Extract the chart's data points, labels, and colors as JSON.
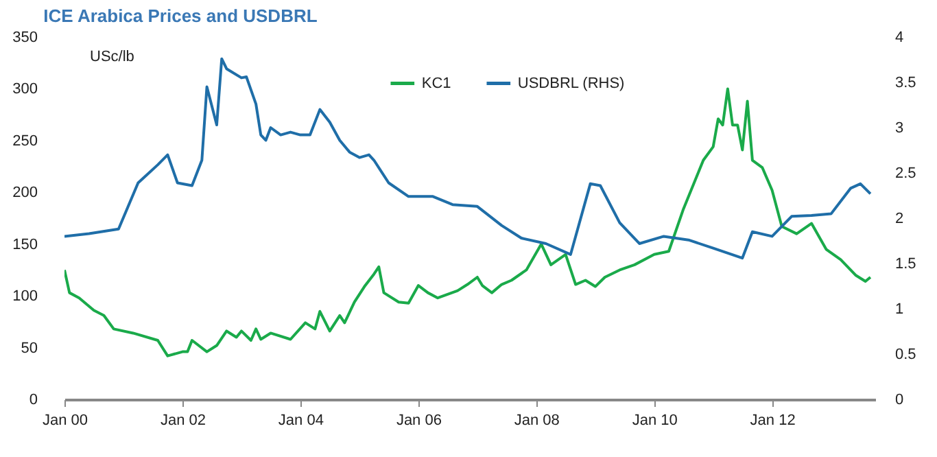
{
  "chart_data": {
    "type": "line",
    "title": "ICE Arabica Prices and USDBRL",
    "ylabel": "USc/lb",
    "legend": "top",
    "xlim": [
      "2000-01",
      "2013-10"
    ],
    "xticks": [
      {
        "value": "2000-01",
        "label": "Jan 00"
      },
      {
        "value": "2002-01",
        "label": "Jan 02"
      },
      {
        "value": "2004-01",
        "label": "Jan 04"
      },
      {
        "value": "2006-01",
        "label": "Jan 06"
      },
      {
        "value": "2008-01",
        "label": "Jan 08"
      },
      {
        "value": "2010-01",
        "label": "Jan 10"
      },
      {
        "value": "2012-01",
        "label": "Jan 12"
      }
    ],
    "ylim": [
      0,
      350
    ],
    "yticks": [
      0,
      50,
      100,
      150,
      200,
      250,
      300,
      350
    ],
    "y2lim": [
      0,
      4
    ],
    "y2ticks": [
      0,
      0.5,
      1,
      1.5,
      2,
      2.5,
      3,
      3.5,
      4
    ],
    "series": [
      {
        "name": "KC1",
        "color": "#1aaa4a",
        "x": [
          "2000-01",
          "2000-02",
          "2000-04",
          "2000-07",
          "2000-09",
          "2000-11",
          "2001-03",
          "2001-08",
          "2001-10",
          "2002-01",
          "2002-02",
          "2002-03",
          "2002-06",
          "2002-08",
          "2002-10",
          "2002-12",
          "2003-01",
          "2003-03",
          "2003-04",
          "2003-05",
          "2003-07",
          "2003-11",
          "2004-02",
          "2004-04",
          "2004-05",
          "2004-07",
          "2004-09",
          "2004-10",
          "2004-12",
          "2005-02",
          "2005-04",
          "2005-05",
          "2005-06",
          "2005-09",
          "2005-11",
          "2006-01",
          "2006-03",
          "2006-05",
          "2006-09",
          "2006-11",
          "2007-01",
          "2007-02",
          "2007-04",
          "2007-06",
          "2007-08",
          "2007-11",
          "2008-02",
          "2008-04",
          "2008-07",
          "2008-09",
          "2008-11",
          "2009-01",
          "2009-03",
          "2009-06",
          "2009-09",
          "2010-01",
          "2010-04",
          "2010-07",
          "2010-11",
          "2011-01",
          "2011-02",
          "2011-03",
          "2011-04",
          "2011-05",
          "2011-06",
          "2011-07",
          "2011-08",
          "2011-09",
          "2011-11",
          "2012-01",
          "2012-03",
          "2012-06",
          "2012-09",
          "2012-12",
          "2013-03",
          "2013-06",
          "2013-08",
          "2013-09"
        ],
        "values": [
          125,
          103,
          98,
          86,
          81,
          68,
          64,
          57,
          42,
          46,
          46,
          57,
          46,
          52,
          66,
          60,
          66,
          57,
          68,
          58,
          64,
          58,
          74,
          68,
          85,
          66,
          81,
          74,
          94,
          109,
          121,
          128,
          103,
          94,
          93,
          110,
          103,
          98,
          105,
          111,
          118,
          110,
          103,
          111,
          115,
          125,
          150,
          130,
          140,
          111,
          115,
          109,
          118,
          125,
          130,
          140,
          143,
          184,
          231,
          244,
          271,
          265,
          300,
          265,
          265,
          241,
          288,
          231,
          224,
          202,
          167,
          160,
          170,
          145,
          135,
          120,
          114,
          118
        ]
      },
      {
        "name": "USDBRL (RHS)",
        "color": "#1f6ea8",
        "axis": "y2",
        "x": [
          "2000-01",
          "2000-06",
          "2000-12",
          "2001-04",
          "2001-08",
          "2001-10",
          "2001-12",
          "2002-03",
          "2002-05",
          "2002-06",
          "2002-08",
          "2002-09",
          "2002-10",
          "2003-01",
          "2003-02",
          "2003-04",
          "2003-05",
          "2003-06",
          "2003-07",
          "2003-09",
          "2003-11",
          "2004-01",
          "2004-03",
          "2004-05",
          "2004-07",
          "2004-09",
          "2004-11",
          "2005-01",
          "2005-03",
          "2005-04",
          "2005-07",
          "2005-11",
          "2006-04",
          "2006-08",
          "2007-01",
          "2007-06",
          "2007-10",
          "2008-03",
          "2008-08",
          "2008-12",
          "2009-02",
          "2009-06",
          "2009-10",
          "2010-03",
          "2010-08",
          "2011-01",
          "2011-07",
          "2011-09",
          "2012-01",
          "2012-05",
          "2012-09",
          "2013-01",
          "2013-05",
          "2013-07",
          "2013-09"
        ],
        "values": [
          1.8,
          1.83,
          1.88,
          2.39,
          2.59,
          2.7,
          2.39,
          2.36,
          2.64,
          3.45,
          3.03,
          3.76,
          3.65,
          3.55,
          3.56,
          3.26,
          2.92,
          2.86,
          3.0,
          2.92,
          2.95,
          2.92,
          2.92,
          3.2,
          3.06,
          2.86,
          2.73,
          2.67,
          2.7,
          2.64,
          2.39,
          2.24,
          2.24,
          2.15,
          2.13,
          1.92,
          1.78,
          1.72,
          1.6,
          2.38,
          2.36,
          1.95,
          1.72,
          1.8,
          1.76,
          1.67,
          1.56,
          1.85,
          1.8,
          2.02,
          2.03,
          2.05,
          2.33,
          2.38,
          2.27
        ]
      }
    ]
  }
}
